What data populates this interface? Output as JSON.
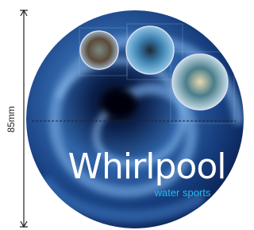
{
  "dimension": {
    "label": "85mm"
  },
  "logo": {
    "title": "Whirlpool",
    "subtitle": "water sports"
  }
}
